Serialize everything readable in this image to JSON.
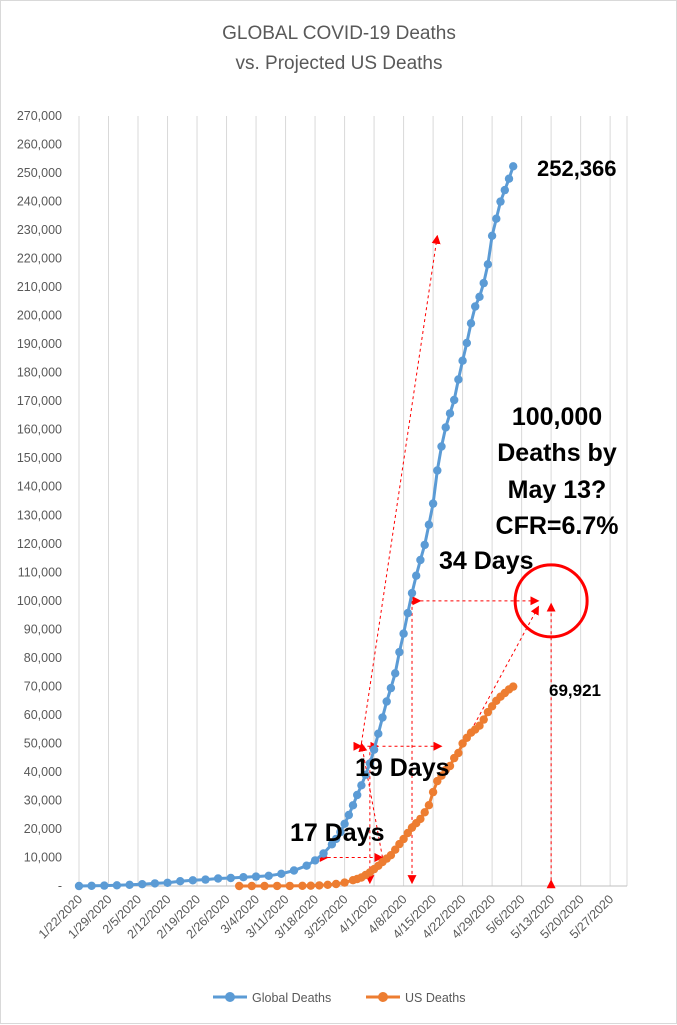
{
  "chart_data": {
    "type": "line",
    "title": [
      "GLOBAL COVID-19 Deaths",
      "vs. Projected US Deaths"
    ],
    "xlabel": "",
    "ylabel": "",
    "x_start": "1/22/2020",
    "x_end": "5/31/2020",
    "x_ticks": [
      "1/22/2020",
      "1/29/2020",
      "2/5/2020",
      "2/12/2020",
      "2/19/2020",
      "2/26/2020",
      "3/4/2020",
      "3/11/2020",
      "3/18/2020",
      "3/25/2020",
      "4/1/2020",
      "4/8/2020",
      "4/15/2020",
      "4/22/2020",
      "4/29/2020",
      "5/6/2020",
      "5/13/2020",
      "5/20/2020",
      "5/27/2020"
    ],
    "ylim": [
      0,
      270000
    ],
    "y_ticks": [
      "-",
      "10,000",
      "20,000",
      "30,000",
      "40,000",
      "50,000",
      "60,000",
      "70,000",
      "80,000",
      "90,000",
      "100,000",
      "110,000",
      "120,000",
      "130,000",
      "140,000",
      "150,000",
      "160,000",
      "170,000",
      "180,000",
      "190,000",
      "200,000",
      "210,000",
      "220,000",
      "230,000",
      "240,000",
      "250,000",
      "260,000",
      "270,000"
    ],
    "grid": "vertical",
    "legend_position": "bottom",
    "series": [
      {
        "name": "Global Deaths",
        "color": "#5b9bd5",
        "points": [
          [
            "1/22/2020",
            17
          ],
          [
            "1/25/2020",
            56
          ],
          [
            "1/28/2020",
            132
          ],
          [
            "1/31/2020",
            259
          ],
          [
            "2/3/2020",
            426
          ],
          [
            "2/6/2020",
            636
          ],
          [
            "2/9/2020",
            908
          ],
          [
            "2/12/2020",
            1118
          ],
          [
            "2/15/2020",
            1666
          ],
          [
            "2/18/2020",
            2006
          ],
          [
            "2/21/2020",
            2251
          ],
          [
            "2/24/2020",
            2629
          ],
          [
            "2/27/2020",
            2810
          ],
          [
            "3/1/2020",
            3088
          ],
          [
            "3/4/2020",
            3286
          ],
          [
            "3/7/2020",
            3588
          ],
          [
            "3/10/2020",
            4262
          ],
          [
            "3/13/2020",
            5429
          ],
          [
            "3/16/2020",
            7126
          ],
          [
            "3/18/2020",
            8965
          ],
          [
            "3/20/2020",
            11399
          ],
          [
            "3/22/2020",
            14623
          ],
          [
            "3/23/2020",
            16500
          ],
          [
            "3/24/2020",
            18900
          ],
          [
            "3/25/2020",
            21800
          ],
          [
            "3/26/2020",
            24900
          ],
          [
            "3/27/2020",
            28300
          ],
          [
            "3/28/2020",
            31900
          ],
          [
            "3/29/2020",
            35300
          ],
          [
            "3/30/2020",
            39000
          ],
          [
            "3/31/2020",
            43000
          ],
          [
            "4/1/2020",
            47800
          ],
          [
            "4/2/2020",
            53400
          ],
          [
            "4/3/2020",
            59100
          ],
          [
            "4/4/2020",
            64700
          ],
          [
            "4/5/2020",
            69400
          ],
          [
            "4/6/2020",
            74600
          ],
          [
            "4/7/2020",
            82000
          ],
          [
            "4/8/2020",
            88500
          ],
          [
            "4/9/2020",
            95700
          ],
          [
            "4/10/2020",
            102700
          ],
          [
            "4/11/2020",
            108800
          ],
          [
            "4/12/2020",
            114300
          ],
          [
            "4/13/2020",
            119600
          ],
          [
            "4/14/2020",
            126700
          ],
          [
            "4/15/2020",
            134100
          ],
          [
            "4/16/2020",
            145700
          ],
          [
            "4/17/2020",
            154100
          ],
          [
            "4/18/2020",
            160800
          ],
          [
            "4/19/2020",
            165700
          ],
          [
            "4/20/2020",
            170400
          ],
          [
            "4/21/2020",
            177600
          ],
          [
            "4/22/2020",
            184200
          ],
          [
            "4/23/2020",
            190400
          ],
          [
            "4/24/2020",
            197300
          ],
          [
            "4/25/2020",
            203200
          ],
          [
            "4/26/2020",
            206600
          ],
          [
            "4/27/2020",
            211400
          ],
          [
            "4/28/2020",
            218000
          ],
          [
            "4/29/2020",
            228000
          ],
          [
            "4/30/2020",
            234000
          ],
          [
            "5/1/2020",
            240000
          ],
          [
            "5/2/2020",
            244000
          ],
          [
            "5/3/2020",
            248000
          ],
          [
            "5/4/2020",
            252366
          ]
        ]
      },
      {
        "name": "US Deaths",
        "color": "#ed7d31",
        "points": [
          [
            "2/29/2020",
            1
          ],
          [
            "3/3/2020",
            9
          ],
          [
            "3/6/2020",
            14
          ],
          [
            "3/9/2020",
            22
          ],
          [
            "3/12/2020",
            43
          ],
          [
            "3/15/2020",
            68
          ],
          [
            "3/17/2020",
            108
          ],
          [
            "3/19/2020",
            200
          ],
          [
            "3/21/2020",
            427
          ],
          [
            "3/23/2020",
            706
          ],
          [
            "3/25/2020",
            1209
          ],
          [
            "3/27/2020",
            2026
          ],
          [
            "3/28/2020",
            2467
          ],
          [
            "3/29/2020",
            2978
          ],
          [
            "3/30/2020",
            3873
          ],
          [
            "3/31/2020",
            4757
          ],
          [
            "4/1/2020",
            5926
          ],
          [
            "4/2/2020",
            7087
          ],
          [
            "4/3/2020",
            8407
          ],
          [
            "4/4/2020",
            9619
          ],
          [
            "4/5/2020",
            10783
          ],
          [
            "4/6/2020",
            12722
          ],
          [
            "4/7/2020",
            14695
          ],
          [
            "4/8/2020",
            16478
          ],
          [
            "4/9/2020",
            18586
          ],
          [
            "4/10/2020",
            20463
          ],
          [
            "4/11/2020",
            22020
          ],
          [
            "4/12/2020",
            23529
          ],
          [
            "4/13/2020",
            25832
          ],
          [
            "4/14/2020",
            28326
          ],
          [
            "4/15/2020",
            32916
          ],
          [
            "4/16/2020",
            36773
          ],
          [
            "4/17/2020",
            38664
          ],
          [
            "4/18/2020",
            40661
          ],
          [
            "4/19/2020",
            42094
          ],
          [
            "4/20/2020",
            44845
          ],
          [
            "4/21/2020",
            46622
          ],
          [
            "4/22/2020",
            49954
          ],
          [
            "4/23/2020",
            51949
          ],
          [
            "4/24/2020",
            53755
          ],
          [
            "4/25/2020",
            54881
          ],
          [
            "4/26/2020",
            56219
          ],
          [
            "4/27/2020",
            58355
          ],
          [
            "4/28/2020",
            60967
          ],
          [
            "4/29/2020",
            62996
          ],
          [
            "4/30/2020",
            64943
          ],
          [
            "5/1/2020",
            66369
          ],
          [
            "5/2/2020",
            67682
          ],
          [
            "5/3/2020",
            68922
          ],
          [
            "5/4/2020",
            69921
          ]
        ]
      }
    ],
    "labels": {
      "global_end": "252,366",
      "us_end": "69,921",
      "days_17": "17 Days",
      "days_19": "19 Days",
      "days_34": "34 Days",
      "projection": [
        "100,000",
        "Deaths by",
        "May 13?",
        "CFR=6.7%"
      ]
    },
    "arrow_color": "#ff0000",
    "circle_color": "#ff0000"
  }
}
